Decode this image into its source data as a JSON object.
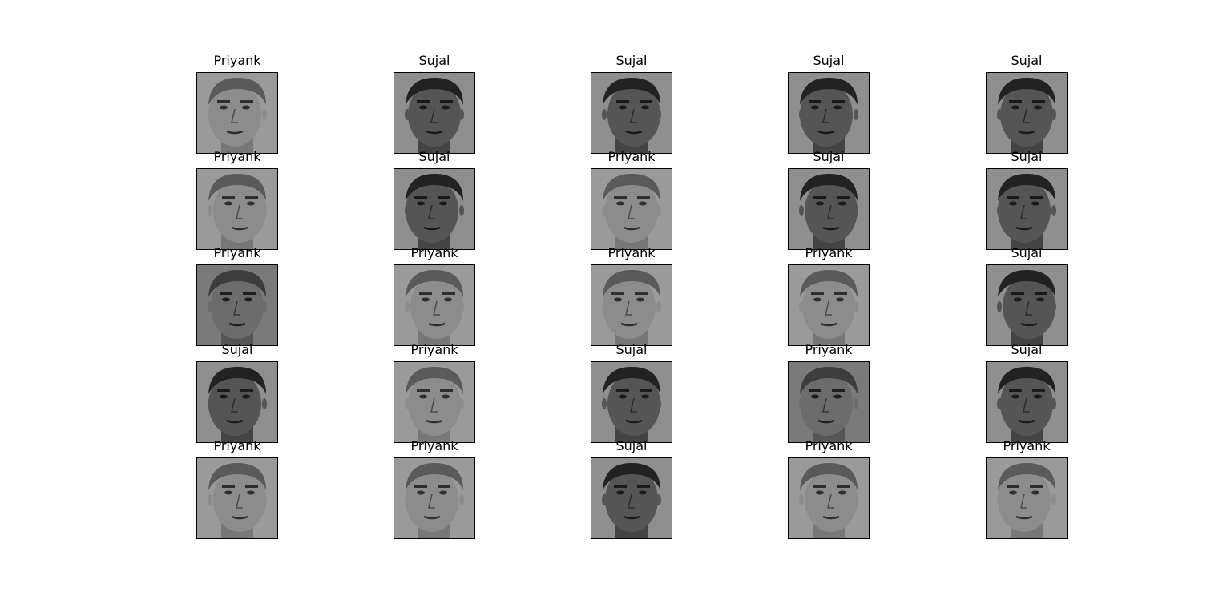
{
  "figure": {
    "rows": 5,
    "cols": 5,
    "panels": [
      {
        "label": "Priyank",
        "tone": "light"
      },
      {
        "label": "Sujal",
        "tone": "dark"
      },
      {
        "label": "Sujal",
        "tone": "dark"
      },
      {
        "label": "Sujal",
        "tone": "dark"
      },
      {
        "label": "Sujal",
        "tone": "dark"
      },
      {
        "label": "Priyank",
        "tone": "light"
      },
      {
        "label": "Sujal",
        "tone": "dark"
      },
      {
        "label": "Priyank",
        "tone": "light"
      },
      {
        "label": "Sujal",
        "tone": "dark"
      },
      {
        "label": "Sujal",
        "tone": "dark"
      },
      {
        "label": "Priyank",
        "tone": "mid"
      },
      {
        "label": "Priyank",
        "tone": "light"
      },
      {
        "label": "Priyank",
        "tone": "light"
      },
      {
        "label": "Priyank",
        "tone": "light"
      },
      {
        "label": "Sujal",
        "tone": "dark"
      },
      {
        "label": "Sujal",
        "tone": "dark"
      },
      {
        "label": "Priyank",
        "tone": "light"
      },
      {
        "label": "Sujal",
        "tone": "dark"
      },
      {
        "label": "Priyank",
        "tone": "mid"
      },
      {
        "label": "Sujal",
        "tone": "dark"
      },
      {
        "label": "Priyank",
        "tone": "light"
      },
      {
        "label": "Priyank",
        "tone": "light"
      },
      {
        "label": "Sujal",
        "tone": "dark"
      },
      {
        "label": "Priyank",
        "tone": "light"
      },
      {
        "label": "Priyank",
        "tone": "light"
      }
    ]
  },
  "colors": {
    "background": "#ffffff",
    "frame": "#000000",
    "title_text": "#000000"
  }
}
